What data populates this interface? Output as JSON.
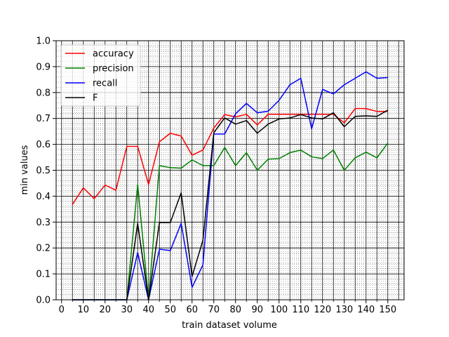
{
  "chart_data": {
    "type": "line",
    "xlabel": "train dataset volume",
    "ylabel": "min values",
    "xlim": [
      -2.5,
      157.5
    ],
    "ylim": [
      0.0,
      1.0
    ],
    "xticks": [
      0,
      10,
      20,
      30,
      40,
      50,
      60,
      70,
      80,
      90,
      100,
      110,
      120,
      130,
      140,
      150
    ],
    "xticks_minor": [
      5,
      15,
      25,
      35,
      45,
      55,
      65,
      75,
      85,
      95,
      105,
      115,
      125,
      135,
      145
    ],
    "yticks": [
      0.0,
      0.1,
      0.2,
      0.3,
      0.4,
      0.5,
      0.6,
      0.7,
      0.8,
      0.9,
      1.0
    ],
    "ytick_labels": [
      "0.0",
      "0.1",
      "0.2",
      "0.3",
      "0.4",
      "0.5",
      "0.6",
      "0.7",
      "0.8",
      "0.9",
      "1.0"
    ],
    "grid": "major solid black, minor dotted",
    "legend_position": "top-left",
    "x": [
      5,
      10,
      15,
      20,
      25,
      30,
      35,
      40,
      45,
      50,
      55,
      60,
      65,
      70,
      75,
      80,
      85,
      90,
      95,
      100,
      105,
      110,
      115,
      120,
      125,
      130,
      135,
      140,
      145,
      150
    ],
    "series": [
      {
        "name": "accuracy",
        "color": "#ff0000",
        "values": [
          0.368,
          0.432,
          0.39,
          0.443,
          0.423,
          0.592,
          0.592,
          0.445,
          0.61,
          0.643,
          0.632,
          0.558,
          0.578,
          0.663,
          0.715,
          0.706,
          0.716,
          0.675,
          0.716,
          0.716,
          0.716,
          0.716,
          0.716,
          0.716,
          0.716,
          0.683,
          0.738,
          0.738,
          0.727,
          0.727
        ]
      },
      {
        "name": "precision",
        "color": "#008000",
        "values": [
          0.0,
          0.0,
          0.0,
          0.0,
          0.0,
          0.0,
          0.445,
          0.0,
          0.518,
          0.51,
          0.508,
          0.54,
          0.518,
          0.518,
          0.588,
          0.518,
          0.568,
          0.5,
          0.543,
          0.545,
          0.568,
          0.578,
          0.552,
          0.545,
          0.578,
          0.5,
          0.548,
          0.57,
          0.548,
          0.605
        ]
      },
      {
        "name": "recall",
        "color": "#0000ff",
        "values": [
          0.0,
          0.0,
          0.0,
          0.0,
          0.0,
          0.0,
          0.182,
          0.0,
          0.195,
          0.19,
          0.295,
          0.048,
          0.135,
          0.64,
          0.64,
          0.718,
          0.758,
          0.722,
          0.728,
          0.77,
          0.83,
          0.855,
          0.66,
          0.812,
          0.795,
          0.83,
          0.855,
          0.88,
          0.855,
          0.858
        ]
      },
      {
        "name": "F",
        "color": "#000000",
        "values": [
          0.0,
          0.0,
          0.0,
          0.0,
          0.0,
          0.0,
          0.295,
          0.0,
          0.298,
          0.298,
          0.413,
          0.09,
          0.23,
          0.645,
          0.702,
          0.678,
          0.692,
          0.643,
          0.678,
          0.698,
          0.702,
          0.715,
          0.702,
          0.698,
          0.722,
          0.668,
          0.708,
          0.71,
          0.708,
          0.732
        ]
      }
    ]
  }
}
